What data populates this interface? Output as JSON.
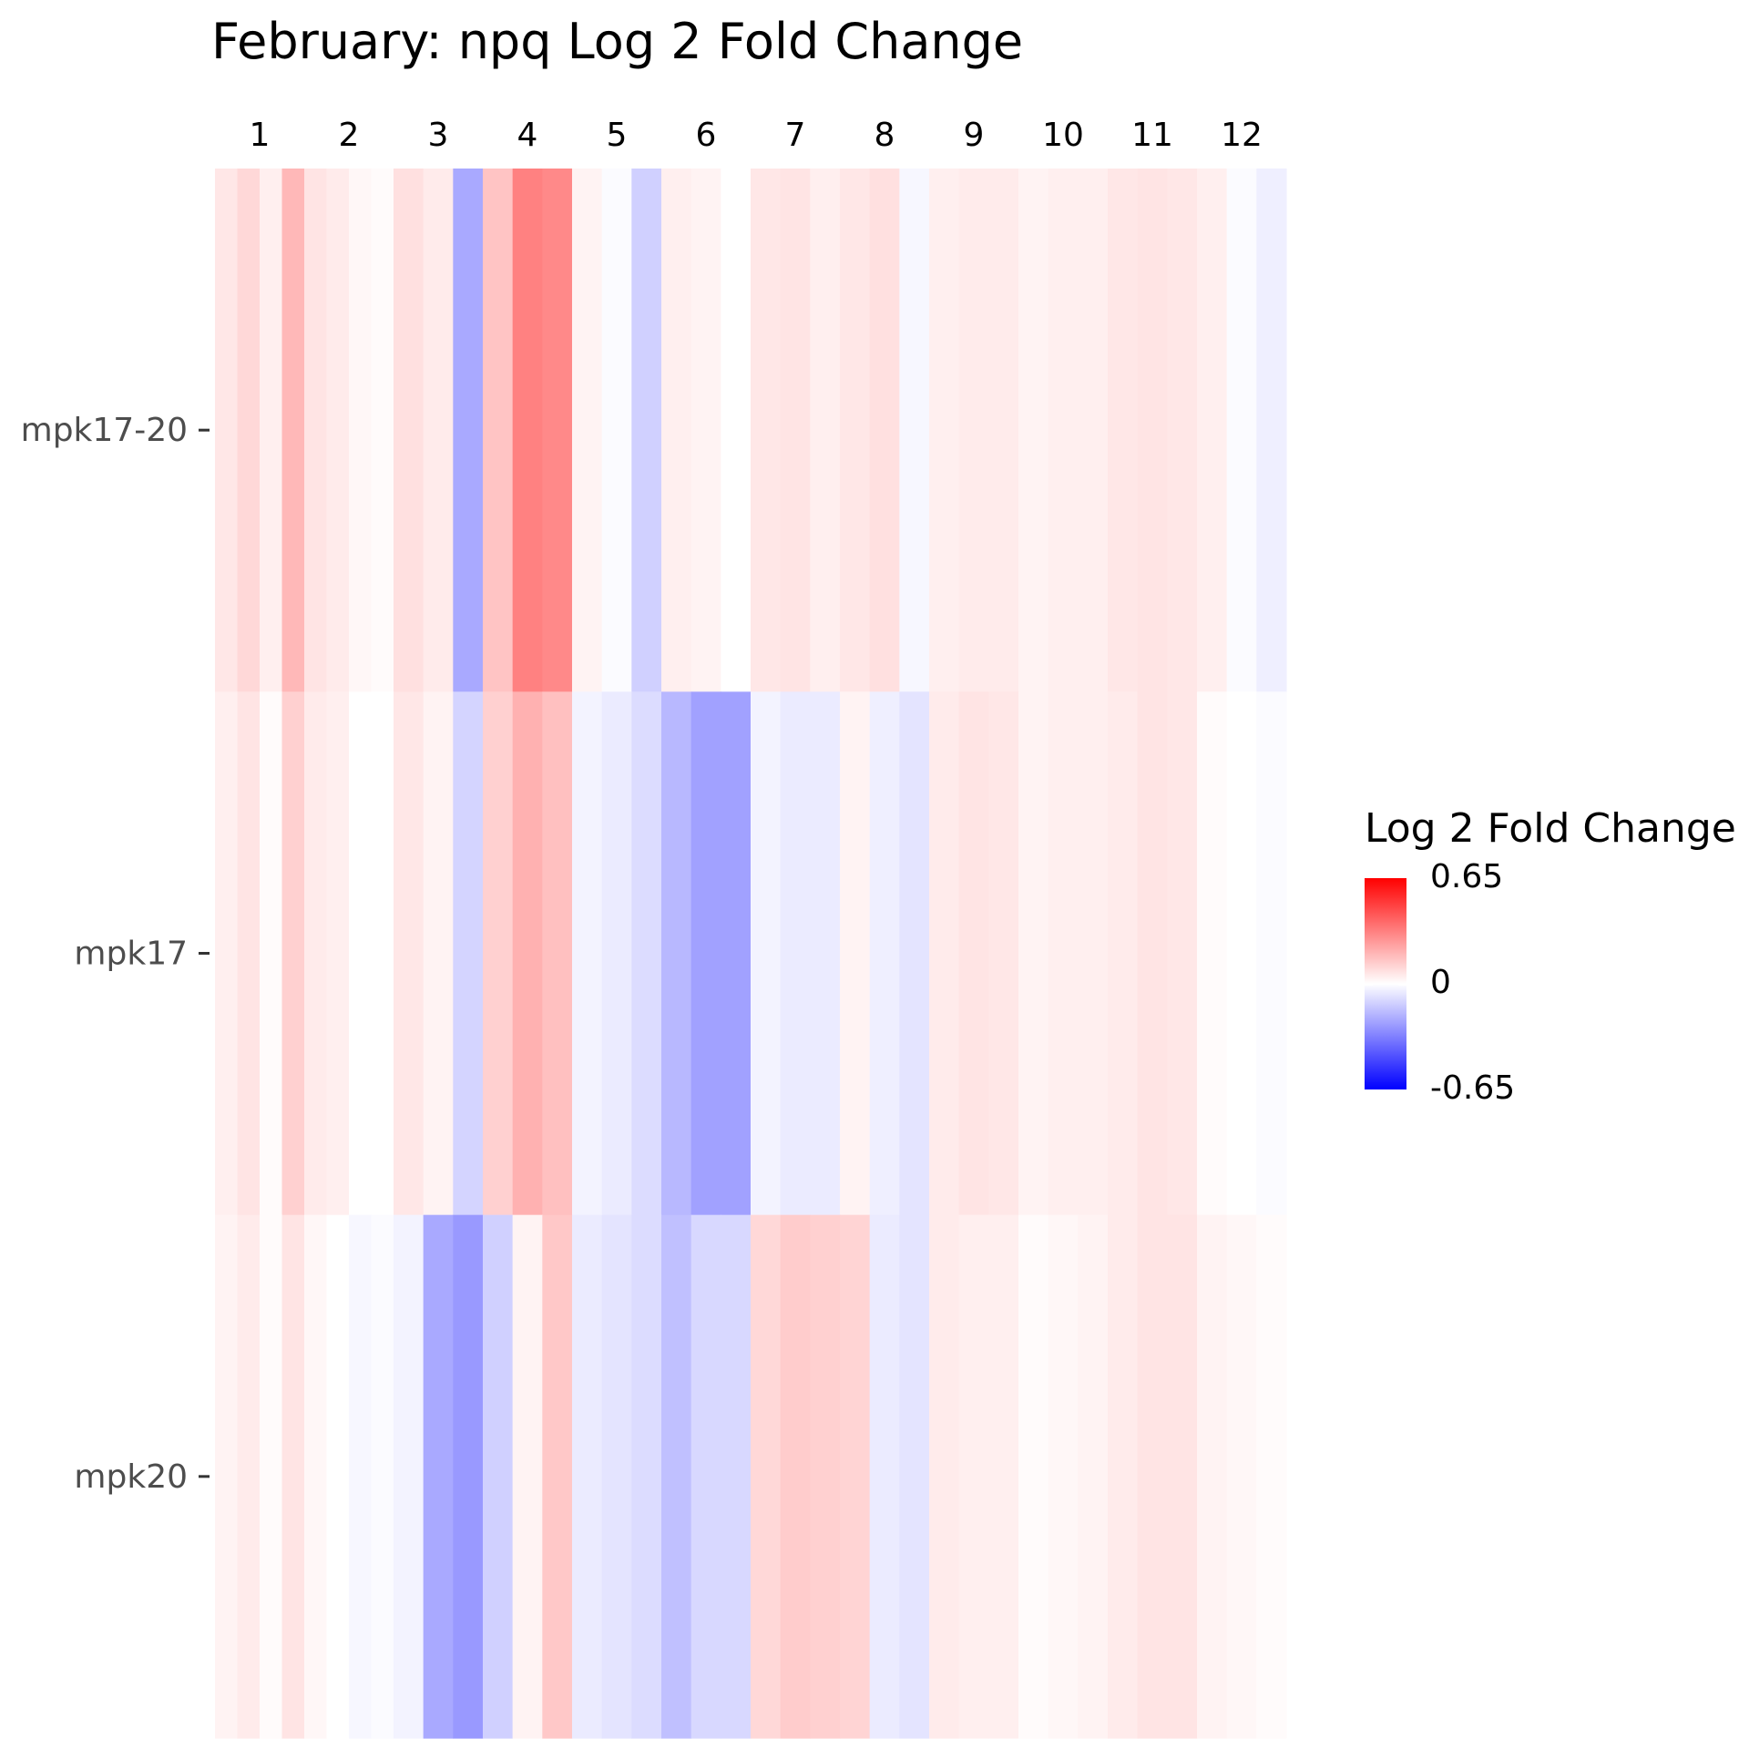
{
  "chart_data": {
    "type": "heatmap",
    "title": "February: npq Log 2 Fold Change",
    "xlabel": "",
    "ylabel": "",
    "x_categories": [
      "1",
      "2",
      "3",
      "4",
      "5",
      "6",
      "7",
      "8",
      "9",
      "10",
      "11",
      "12"
    ],
    "y_categories": [
      "mpk17-20",
      "mpk17",
      "mpk20"
    ],
    "legend": {
      "title": "Log 2 Fold Change",
      "max_label": "0.65",
      "mid_label": "0",
      "min_label": "-0.65",
      "range": [
        -0.65,
        0.65
      ],
      "colors": {
        "low": "#0000ff",
        "mid": "#ffffff",
        "high": "#ff0000"
      },
      "placement": "right"
    },
    "values": {
      "mpk17-20": [
        [
          0.06,
          0.1,
          0.04,
          0.18
        ],
        [
          0.07,
          0.05,
          0.02,
          0.01
        ],
        [
          0.08,
          0.05,
          -0.22
        ],
        [
          0.15,
          0.32,
          0.3
        ],
        [
          0.03,
          -0.01,
          -0.12
        ],
        [
          0.04,
          0.03,
          0.0
        ],
        [
          0.06,
          0.07,
          0.04
        ],
        [
          0.06,
          0.08,
          -0.02
        ],
        [
          0.04,
          0.05,
          0.05
        ],
        [
          0.03,
          0.04,
          0.04
        ],
        [
          0.06,
          0.07,
          0.06
        ],
        [
          0.04,
          -0.01,
          -0.04
        ]
      ],
      "mpk17": [
        [
          0.04,
          0.07,
          0.01,
          0.12
        ],
        [
          0.05,
          0.04,
          0.0,
          0.0
        ],
        [
          0.06,
          0.03,
          -0.11
        ],
        [
          0.12,
          0.2,
          0.16
        ],
        [
          -0.03,
          -0.05,
          -0.09
        ],
        [
          -0.18,
          -0.24,
          -0.24
        ],
        [
          -0.03,
          -0.05,
          -0.05
        ],
        [
          0.03,
          -0.04,
          -0.07
        ],
        [
          0.05,
          0.07,
          0.06
        ],
        [
          0.03,
          0.04,
          0.04
        ],
        [
          0.05,
          0.07,
          0.06
        ],
        [
          0.01,
          0.0,
          -0.01
        ]
      ],
      "mpk20": [
        [
          0.03,
          0.05,
          0.01,
          0.07
        ],
        [
          0.02,
          0.0,
          -0.02,
          -0.01
        ],
        [
          -0.03,
          -0.22,
          -0.26
        ],
        [
          -0.12,
          0.03,
          0.14
        ],
        [
          -0.05,
          -0.07,
          -0.09
        ],
        [
          -0.16,
          -0.1,
          -0.1
        ],
        [
          0.1,
          0.13,
          0.12
        ],
        [
          0.11,
          -0.05,
          -0.07
        ],
        [
          0.05,
          0.04,
          0.04
        ],
        [
          0.01,
          0.02,
          0.03
        ],
        [
          0.05,
          0.07,
          0.07
        ],
        [
          0.03,
          0.02,
          0.01
        ]
      ]
    },
    "grid": false
  }
}
